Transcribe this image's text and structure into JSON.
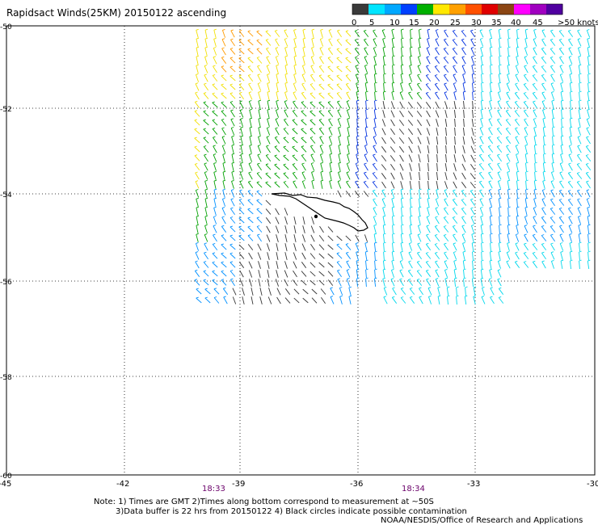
{
  "title": "Rapidsact Winds(25KM)  20150122 ascending",
  "colorbar": {
    "labels": [
      "0",
      "5",
      "10",
      "15",
      "20",
      "25",
      "30",
      "35",
      "40",
      "45",
      ">50 knots"
    ],
    "colors": [
      "#3a3a3a",
      "#00e5ff",
      "#00a8ff",
      "#0040ff",
      "#00b000",
      "#ffe800",
      "#ffa000",
      "#ff5000",
      "#e00000",
      "#8b4513",
      "#ff00ff",
      "#a000c0",
      "#5000a0"
    ]
  },
  "axes": {
    "lat_labels": [
      "-50",
      "-52",
      "-54",
      "-56",
      "-58",
      "-60"
    ],
    "lon_labels": [
      "-45",
      "-42",
      "-39",
      "-36",
      "-33",
      "-30"
    ]
  },
  "time_labels": [
    "18:33",
    "18:34"
  ],
  "notes": {
    "line1": "Note:  1) Times are GMT  2)Times along bottom correspond to measurement at ~50S",
    "line2": "3)Data buffer is 22 hrs from 20150122  4) Black circles indicate possible contamination",
    "credit": "NOAA/NESDIS/Office of Research and Applications"
  }
}
